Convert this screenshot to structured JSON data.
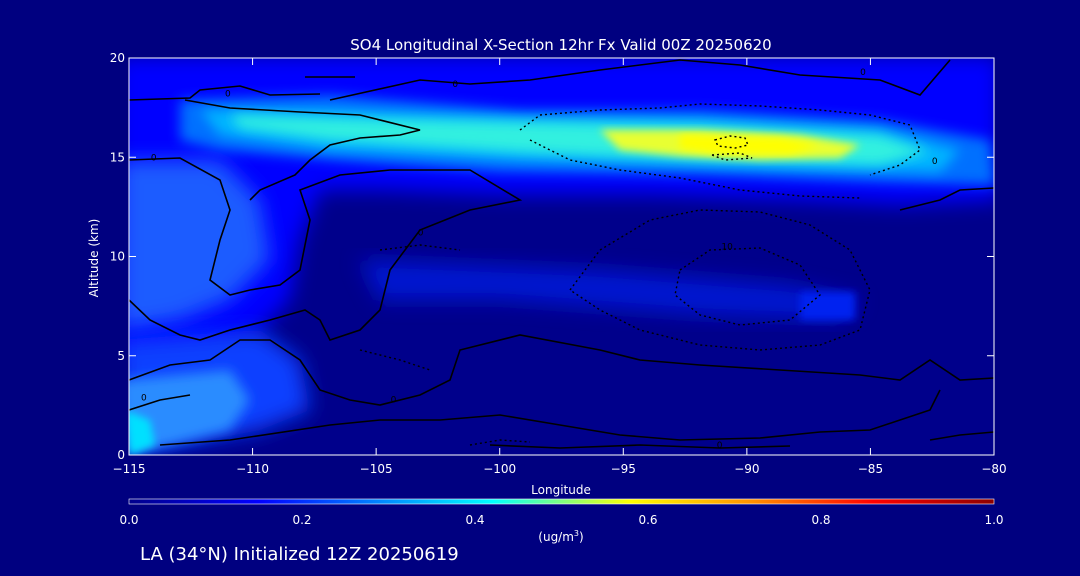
{
  "chart_data": {
    "type": "heatmap",
    "title": "SO4 Longitudinal X-Section 12hr  Fx Valid 00Z 20250620",
    "xlabel": "Longitude",
    "ylabel": "Altitude (km)",
    "xlim": [
      -115,
      -80
    ],
    "ylim": [
      0,
      20
    ],
    "x_ticks": [
      -115,
      -110,
      -105,
      -100,
      -95,
      -90,
      -85,
      -80
    ],
    "x_tick_labels": [
      "-115",
      "-110",
      "-105",
      "-100",
      "-95",
      "-90",
      "-85",
      "-80"
    ],
    "y_ticks": [
      0,
      5,
      10,
      15,
      20
    ],
    "y_tick_labels": [
      "0",
      "5",
      "10",
      "15",
      "20"
    ],
    "colorbar": {
      "min": 0.0,
      "max": 1.0,
      "ticks": [
        0.0,
        0.2,
        0.4,
        0.6,
        0.8,
        1.0
      ],
      "tick_labels": [
        "0.0",
        "0.2",
        "0.4",
        "0.6",
        "0.8",
        "1.0"
      ],
      "unit_prefix": "(ug/m",
      "unit_sup": "3",
      "unit_suffix": ")",
      "colormap": [
        "#00008b",
        "#0000ff",
        "#00aaff",
        "#00ffff",
        "#ffff00",
        "#ff7f00",
        "#ff0000",
        "#8b0000"
      ]
    },
    "grid": false,
    "contour_labels": [
      {
        "text": "0",
        "x": -111.0,
        "y": 18.2
      },
      {
        "text": "0",
        "x": -101.8,
        "y": 18.7
      },
      {
        "text": "0",
        "x": -85.3,
        "y": 19.3
      },
      {
        "text": "0",
        "x": -114.0,
        "y": 15.0
      },
      {
        "text": "0",
        "x": -82.4,
        "y": 14.8
      },
      {
        "text": "0",
        "x": -103.2,
        "y": 11.2
      },
      {
        "text": "10",
        "x": -90.8,
        "y": 10.5
      },
      {
        "text": "0",
        "x": -104.3,
        "y": 2.8
      },
      {
        "text": "0",
        "x": -91.1,
        "y": 0.5
      },
      {
        "text": "0",
        "x": -114.4,
        "y": 2.9
      }
    ]
  },
  "footer_text": "LA (34°N) Initialized 12Z 20250619",
  "colors": {
    "background": "#000080",
    "plot_base": "#00008b",
    "contour": "#000000",
    "text": "#ffffff"
  }
}
